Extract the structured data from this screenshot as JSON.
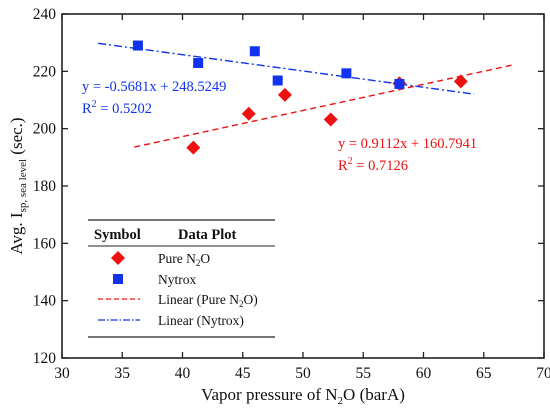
{
  "chart_data": {
    "type": "scatter",
    "xlabel_main": "Vapor pressure of N",
    "xlabel_sub": "2",
    "xlabel_tail": "O (barA)",
    "ylabel_main": "Avg. I",
    "ylabel_sub": "sp, sea level",
    "ylabel_tail": " (sec.)",
    "xlim": [
      30,
      70
    ],
    "ylim": [
      120,
      240
    ],
    "xticks": [
      30,
      35,
      40,
      45,
      50,
      55,
      60,
      65,
      70
    ],
    "yticks": [
      120,
      140,
      160,
      180,
      200,
      220,
      240
    ],
    "grid": false,
    "series": [
      {
        "name": "Pure N2O",
        "marker": "diamond",
        "color": "#ee1111",
        "x": [
          40.9,
          45.5,
          48.5,
          52.3,
          58.0,
          63.1
        ],
        "y": [
          193.4,
          205.2,
          211.8,
          203.2,
          215.8,
          216.5
        ]
      },
      {
        "name": "Nytrox",
        "marker": "square",
        "color": "#1133ee",
        "x": [
          36.3,
          41.3,
          46.0,
          47.9,
          53.6,
          58.0
        ],
        "y": [
          229.0,
          222.9,
          227.0,
          216.8,
          219.3,
          215.6
        ]
      }
    ],
    "fits": [
      {
        "name": "Linear (Pure N2O)",
        "style": "dashed",
        "color": "#ee1111",
        "slope": 0.9112,
        "intercept": 160.7941,
        "x_range": [
          36,
          67.5
        ],
        "equation": "y = 0.9112x + 160.7941",
        "r2_label": "R",
        "r2_sup": "2",
        "r2_value": " = 0.7126"
      },
      {
        "name": "Linear (Nytrox)",
        "style": "dashdot",
        "color": "#1133ee",
        "slope": -0.5681,
        "intercept": 248.5249,
        "x_range": [
          33,
          64.2
        ],
        "equation": "y = -0.5681x + 248.5249",
        "r2_label": "R",
        "r2_sup": "2",
        "r2_value": " = 0.5202"
      }
    ],
    "legend": {
      "placement": "bottom-left",
      "header_symbol": "Symbol",
      "header_plot": "Data Plot",
      "entries": [
        {
          "main": "Pure N",
          "sub": "2",
          "tail": "O"
        },
        {
          "main": "Nytrox",
          "sub": "",
          "tail": ""
        },
        {
          "main": "Linear (Pure N",
          "sub": "2",
          "tail": "O)"
        },
        {
          "main": "Linear (Nytrox)",
          "sub": "",
          "tail": ""
        }
      ]
    }
  }
}
